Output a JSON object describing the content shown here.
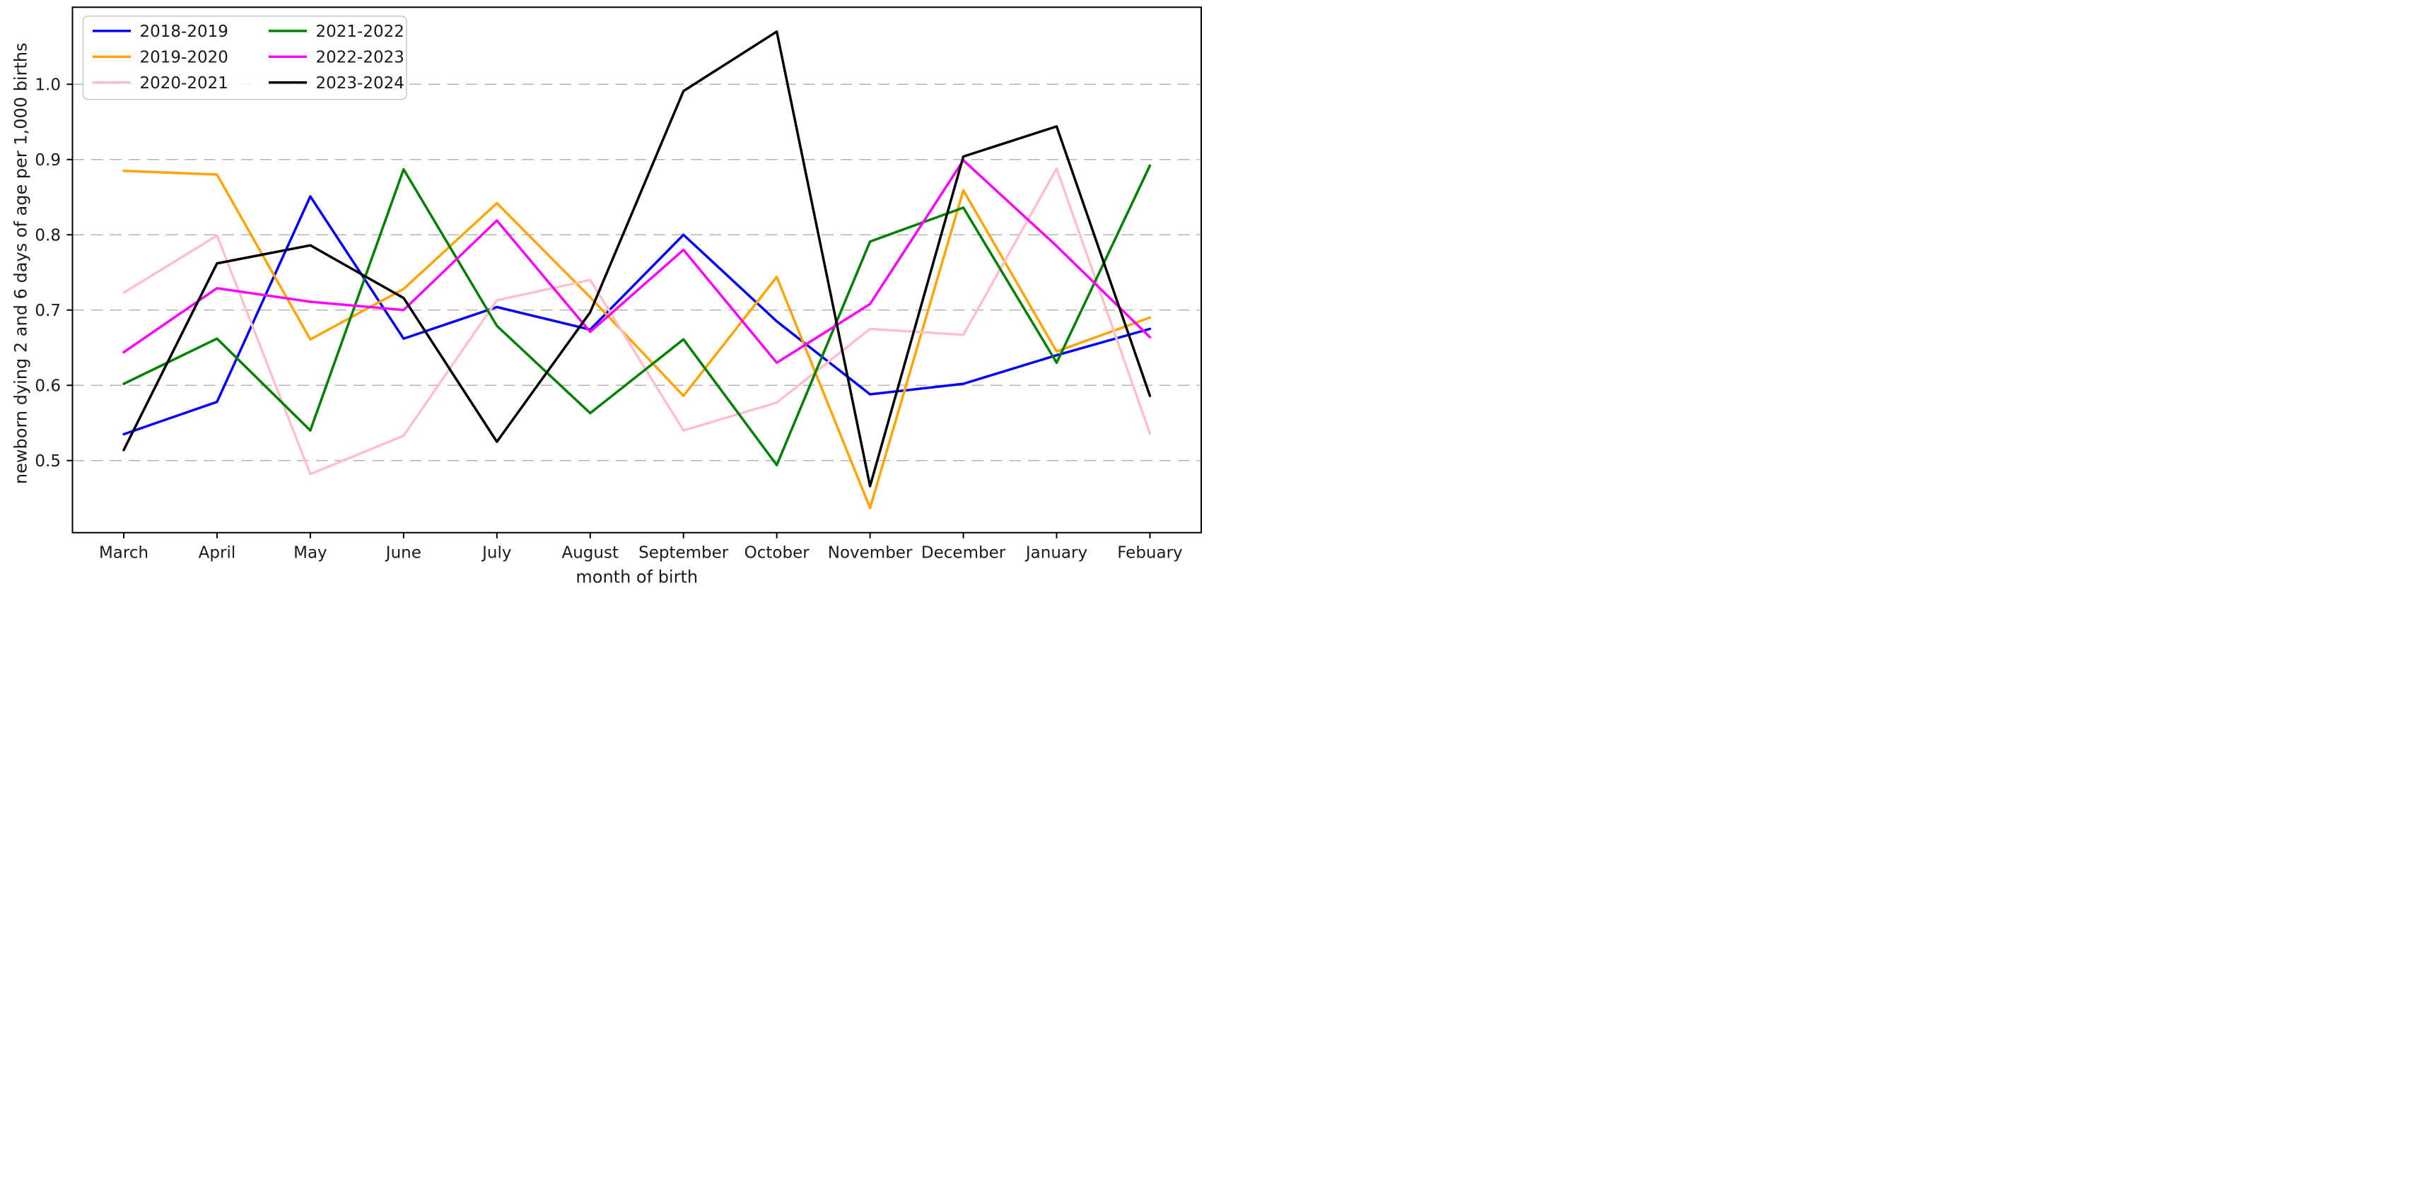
{
  "chart_data": {
    "type": "line",
    "title": "",
    "xlabel": "month of birth",
    "ylabel": "newborn dying 2 and 6 days of age per 1,000 births",
    "categories": [
      "March",
      "April",
      "May",
      "June",
      "July",
      "August",
      "September",
      "October",
      "November",
      "December",
      "January",
      "Febuary"
    ],
    "yticks": [
      0.5,
      0.6,
      0.7,
      0.8,
      0.9,
      1.0
    ],
    "ylim": [
      0.405,
      1.102
    ],
    "grid": "horizontal dashed gridlines at each y tick",
    "grid_color": "#b4b4b4",
    "legend_position": "upper left, 2 columns",
    "legend_columns": [
      [
        "2018-2019",
        "2019-2020",
        "2020-2021"
      ],
      [
        "2021-2022",
        "2022-2023",
        "2023-2024"
      ]
    ],
    "series": [
      {
        "name": "2018-2019",
        "color": "#0000ff",
        "values": [
          0.535,
          0.578,
          0.851,
          0.662,
          0.704,
          0.674,
          0.8,
          0.685,
          0.588,
          0.602,
          0.64,
          0.675
        ]
      },
      {
        "name": "2019-2020",
        "color": "#ffa500",
        "values": [
          0.885,
          0.88,
          0.661,
          0.728,
          0.842,
          0.717,
          0.586,
          0.744,
          0.437,
          0.859,
          0.645,
          0.69
        ]
      },
      {
        "name": "2020-2021",
        "color": "#ffc0cb",
        "values": [
          0.723,
          0.799,
          0.482,
          0.533,
          0.713,
          0.74,
          0.54,
          0.577,
          0.675,
          0.667,
          0.888,
          0.536
        ]
      },
      {
        "name": "2021-2022",
        "color": "#008000",
        "values": [
          0.602,
          0.662,
          0.54,
          0.887,
          0.679,
          0.563,
          0.661,
          0.494,
          0.791,
          0.836,
          0.63,
          0.892
        ]
      },
      {
        "name": "2022-2023",
        "color": "#ff00ff",
        "values": [
          0.644,
          0.729,
          0.711,
          0.7,
          0.819,
          0.671,
          0.78,
          0.63,
          0.708,
          0.899,
          0.785,
          0.664
        ]
      },
      {
        "name": "2023-2024",
        "color": "#000000",
        "values": [
          0.514,
          0.762,
          0.786,
          0.716,
          0.525,
          0.697,
          0.991,
          1.07,
          0.466,
          0.904,
          0.944,
          0.586
        ]
      }
    ]
  },
  "style": {
    "axis_color": "#000000",
    "text_color": "#1a1a1a",
    "legend_border_color": "#c8c8c8",
    "background": "#ffffff"
  }
}
